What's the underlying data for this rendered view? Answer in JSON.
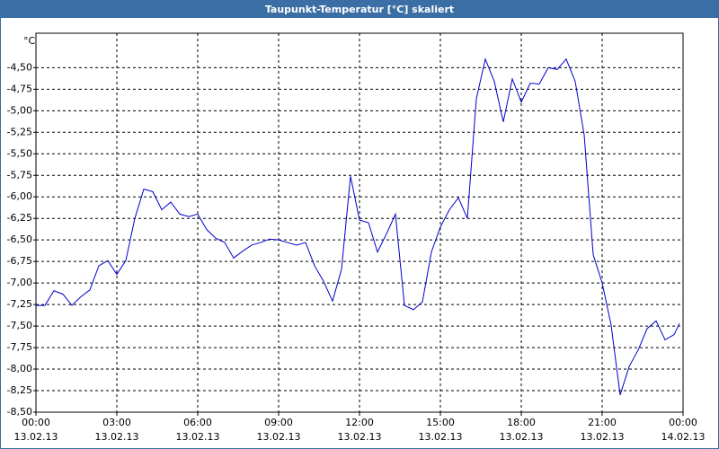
{
  "chart_data": {
    "type": "line",
    "title": "Taupunkt-Temperatur [°C] skaliert",
    "y_label": "°C",
    "x": [
      0,
      20,
      40,
      60,
      80,
      100,
      120,
      140,
      160,
      180,
      200,
      220,
      240,
      260,
      280,
      300,
      320,
      340,
      360,
      380,
      400,
      420,
      440,
      460,
      480,
      500,
      520,
      540,
      560,
      580,
      600,
      620,
      640,
      660,
      680,
      700,
      720,
      740,
      760,
      780,
      800,
      820,
      840,
      860,
      880,
      900,
      920,
      940,
      960,
      980,
      1000,
      1020,
      1040,
      1060,
      1080,
      1100,
      1120,
      1140,
      1160,
      1180,
      1200,
      1220,
      1240,
      1260,
      1280,
      1300,
      1320,
      1340,
      1360,
      1380,
      1400,
      1420,
      1432
    ],
    "values": [
      -7.26,
      -7.26,
      -7.09,
      -7.13,
      -7.26,
      -7.16,
      -7.08,
      -6.8,
      -6.74,
      -6.9,
      -6.74,
      -6.25,
      -5.91,
      -5.94,
      -6.15,
      -6.06,
      -6.2,
      -6.23,
      -6.2,
      -6.38,
      -6.48,
      -6.53,
      -6.71,
      -6.63,
      -6.56,
      -6.53,
      -6.49,
      -6.5,
      -6.53,
      -6.56,
      -6.53,
      -6.8,
      -6.98,
      -7.21,
      -6.84,
      -5.76,
      -6.27,
      -6.3,
      -6.64,
      -6.43,
      -6.2,
      -7.26,
      -7.31,
      -7.22,
      -6.64,
      -6.35,
      -6.15,
      -6.01,
      -6.25,
      -4.86,
      -4.4,
      -4.66,
      -5.13,
      -4.63,
      -4.9,
      -4.68,
      -4.69,
      -4.5,
      -4.52,
      -4.4,
      -4.66,
      -5.28,
      -6.67,
      -7.0,
      -7.49,
      -8.3,
      -7.97,
      -7.78,
      -7.53,
      -7.44,
      -7.66,
      -7.6,
      -7.47
    ],
    "color": "#0000cc",
    "grid": true,
    "xlim": [
      0,
      1440
    ],
    "xticks": [
      {
        "value": 0,
        "label": "00:00\n13.02.13"
      },
      {
        "value": 180,
        "label": "03:00\n13.02.13"
      },
      {
        "value": 360,
        "label": "06:00\n13.02.13"
      },
      {
        "value": 540,
        "label": "09:00\n13.02.13"
      },
      {
        "value": 720,
        "label": "12:00\n13.02.13"
      },
      {
        "value": 900,
        "label": "15:00\n13.02.13"
      },
      {
        "value": 1080,
        "label": "18:00\n13.02.13"
      },
      {
        "value": 1260,
        "label": "21:00\n13.02.13"
      },
      {
        "value": 1440,
        "label": "00:00\n14.02.13"
      }
    ],
    "ylim": [
      -8.5,
      -4.1
    ],
    "yticks": [
      {
        "value": -4.5,
        "label": "-4,50"
      },
      {
        "value": -4.75,
        "label": "-4,75"
      },
      {
        "value": -5,
        "label": "-5,00"
      },
      {
        "value": -5.25,
        "label": "-5,25"
      },
      {
        "value": -5.5,
        "label": "-5,50"
      },
      {
        "value": -5.75,
        "label": "-5,75"
      },
      {
        "value": -6,
        "label": "-6,00"
      },
      {
        "value": -6.25,
        "label": "-6,25"
      },
      {
        "value": -6.5,
        "label": "-6,50"
      },
      {
        "value": -6.75,
        "label": "-6,75"
      },
      {
        "value": -7,
        "label": "-7,00"
      },
      {
        "value": -7.25,
        "label": "-7,25"
      },
      {
        "value": -7.5,
        "label": "-7,50"
      },
      {
        "value": -7.75,
        "label": "-7,75"
      },
      {
        "value": -8,
        "label": "-8,00"
      },
      {
        "value": -8.25,
        "label": "-8,25"
      },
      {
        "value": -8.5,
        "label": "-8,50"
      }
    ]
  }
}
